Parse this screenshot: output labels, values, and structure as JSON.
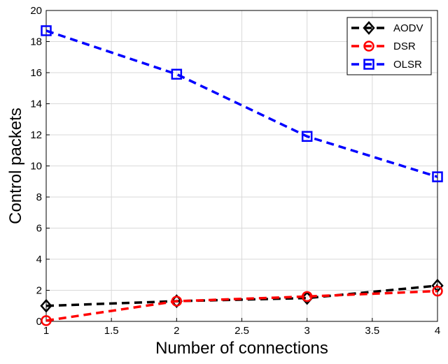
{
  "chart_data": {
    "type": "line",
    "title": "",
    "xlabel": "Number of connections",
    "ylabel": "Control packets",
    "xlim": [
      1,
      4
    ],
    "ylim": [
      0,
      20
    ],
    "xticks": [
      "1",
      "1.5",
      "2",
      "2.5",
      "3",
      "3.5",
      "4"
    ],
    "yticks": [
      "0",
      "2",
      "4",
      "6",
      "8",
      "10",
      "12",
      "14",
      "16",
      "18",
      "20"
    ],
    "grid": true,
    "legend_position": "top-right",
    "x": [
      1,
      2,
      3,
      4
    ],
    "series": [
      {
        "name": "AODV",
        "values": [
          1.0,
          1.3,
          1.5,
          2.3
        ],
        "color": "#000000",
        "marker": "diamond"
      },
      {
        "name": "DSR",
        "values": [
          0.05,
          1.3,
          1.6,
          1.95
        ],
        "color": "#ff0000",
        "marker": "circle"
      },
      {
        "name": "OLSR",
        "values": [
          18.7,
          15.9,
          11.9,
          9.3
        ],
        "color": "#0000ff",
        "marker": "square"
      }
    ]
  }
}
